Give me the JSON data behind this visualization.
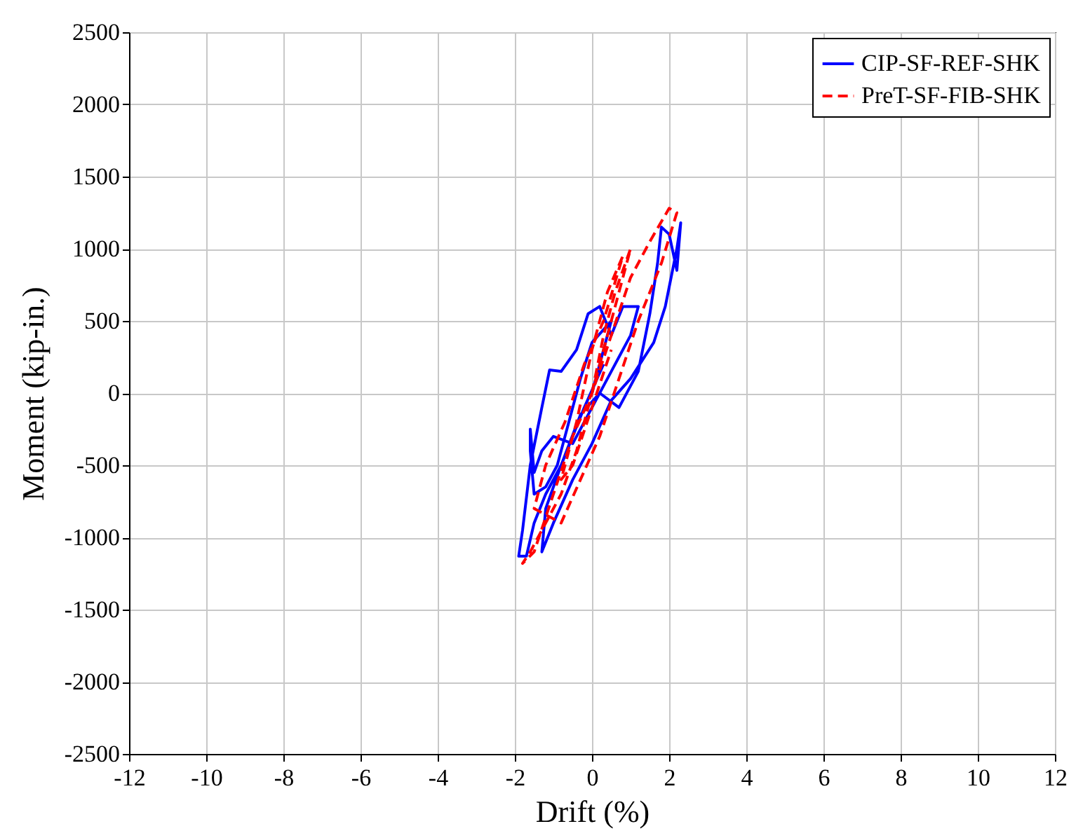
{
  "chart_data": {
    "type": "line",
    "xlabel": "Drift (%)",
    "ylabel": "Moment (kip-in.)",
    "xlim": [
      -12,
      12
    ],
    "xticks": [
      -12,
      -10,
      -8,
      -6,
      -4,
      -2,
      0,
      2,
      4,
      6,
      8,
      10,
      12
    ],
    "ylim": [
      -2500,
      2500
    ],
    "yticks": [
      -2500,
      -2000,
      -1500,
      -1000,
      -500,
      0,
      500,
      1000,
      1500,
      2000,
      2500
    ],
    "grid": true,
    "legend": "top right",
    "series": [
      {
        "name": "CIP-SF-REF-SHK",
        "color": "#0000ff",
        "line_style": "solid",
        "x": [
          0,
          0.3,
          0.5,
          0,
          -0.3,
          -0.6,
          -0.9,
          -1.2,
          -1.5,
          -1.6,
          -1.6,
          -1.5,
          -1.3,
          -1,
          -0.5,
          0,
          0.5,
          1,
          1.2,
          0.8,
          0.5,
          0.2,
          -0.1,
          -0.4,
          -0.8,
          -1.1,
          -1.3,
          -1.6,
          -1.8,
          -1.9,
          -1.7,
          -1.5,
          -1.2,
          -0.8,
          -0.3,
          0.2,
          0.7,
          1.2,
          1.5,
          1.7,
          1.8,
          2,
          2.2,
          2.3,
          2.2,
          1.9,
          1.6,
          1,
          0.5,
          0,
          -0.5,
          -1,
          -1.3,
          -1.2,
          -0.8,
          -0.2,
          0.3
        ],
        "values": [
          0,
          300,
          500,
          350,
          100,
          -200,
          -500,
          -650,
          -700,
          -400,
          -250,
          -550,
          -400,
          -300,
          -350,
          -100,
          150,
          400,
          600,
          600,
          400,
          600,
          550,
          300,
          150,
          160,
          -100,
          -500,
          -950,
          -1130,
          -1130,
          -900,
          -700,
          -500,
          -150,
          0,
          -100,
          150,
          550,
          900,
          1150,
          1100,
          850,
          1180,
          1000,
          600,
          350,
          100,
          -50,
          -350,
          -600,
          -900,
          -1100,
          -800,
          -500,
          -100,
          200
        ]
      },
      {
        "name": "PreT-SF-FIB-SHK",
        "color": "#ff0000",
        "line_style": "dashed",
        "x": [
          0,
          0.3,
          0.6,
          1,
          0.6,
          0.1,
          -0.4,
          -0.8,
          -1.2,
          -1.6,
          -1.8,
          -1.5,
          -1,
          -0.5,
          0,
          0.5,
          1,
          1.5,
          2,
          2.2,
          1.8,
          1.2,
          0.7,
          0.2,
          -0.3,
          -0.8,
          -1.5,
          -1.2,
          -0.7,
          -0.2,
          0.3,
          0.8,
          0.4,
          0,
          -0.4,
          -0.8,
          -0.5,
          0,
          0.5
        ],
        "values": [
          0,
          400,
          700,
          1000,
          600,
          100,
          -400,
          -700,
          -900,
          -1100,
          -1180,
          -1100,
          -700,
          -300,
          0,
          400,
          800,
          1050,
          1280,
          1250,
          900,
          500,
          100,
          -300,
          -600,
          -900,
          -800,
          -500,
          -200,
          200,
          500,
          950,
          700,
          300,
          -200,
          -600,
          -500,
          -100,
          300
        ]
      }
    ]
  }
}
